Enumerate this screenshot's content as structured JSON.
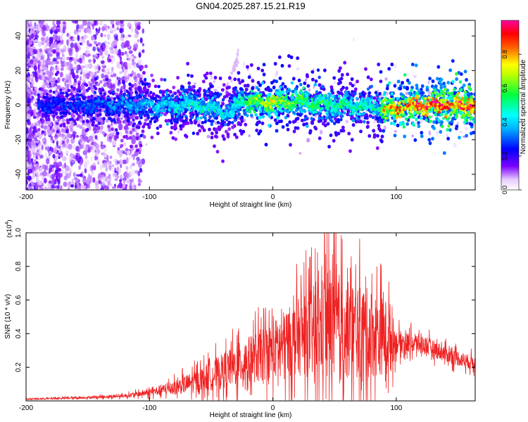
{
  "figure": {
    "title": "GN04.2025.287.15.21.R19"
  },
  "chart_data": [
    {
      "type": "heatmap",
      "name": "spectrogram",
      "xlabel": "Height of straight line (km)",
      "ylabel": "Frequency (Hz)",
      "xlim": [
        -200,
        164
      ],
      "ylim": [
        -49,
        49
      ],
      "x_ticks": [
        -200,
        -100,
        0,
        100
      ],
      "y_ticks": [
        -40,
        -20,
        0,
        20,
        40
      ],
      "colorbar": {
        "label": "Normalized spectral amplitude",
        "range": [
          0,
          1
        ],
        "ticks": [
          "0.0",
          "0.2",
          "0.4",
          "0.6",
          "0.8"
        ],
        "colormap": [
          "#ffffff",
          "#7a00ff",
          "#0000ff",
          "#00ffff",
          "#00ff00",
          "#ffff00",
          "#ff0000",
          "#ff00ff"
        ]
      },
      "ridge": {
        "description_x": [
          -200,
          -150,
          -100,
          -60,
          -35,
          -25,
          0,
          20,
          50,
          85,
          90,
          120,
          164
        ],
        "center_freq": [
          0,
          0,
          0,
          0,
          -5,
          3,
          1,
          2,
          0,
          -1,
          -3,
          0,
          0
        ],
        "peak_amplitude": [
          0.25,
          0.3,
          0.4,
          0.5,
          0.45,
          0.55,
          0.75,
          0.6,
          0.55,
          0.5,
          0.8,
          0.95,
          0.95
        ]
      }
    },
    {
      "type": "line",
      "name": "snr",
      "xlabel": "Height of straight line (km)",
      "ylabel": "SNR (10 * v/v)",
      "y_multiplier": "(x10",
      "y_multiplier_exp": "4",
      "y_multiplier_close": ")",
      "xlim": [
        -200,
        164
      ],
      "ylim": [
        0,
        1.0
      ],
      "x_ticks": [
        -200,
        -100,
        0,
        100
      ],
      "y_ticks": [
        "0.2",
        "0.4",
        "0.6",
        "0.8",
        "1.0"
      ],
      "color": "#ee2222",
      "envelope_x": [
        -200,
        -150,
        -120,
        -100,
        -80,
        -60,
        -40,
        -20,
        0,
        20,
        40,
        45,
        60,
        80,
        95,
        100,
        120,
        140,
        164
      ],
      "envelope_mean": [
        0.01,
        0.02,
        0.03,
        0.05,
        0.08,
        0.12,
        0.18,
        0.24,
        0.3,
        0.38,
        0.42,
        0.45,
        0.42,
        0.4,
        0.38,
        0.35,
        0.34,
        0.28,
        0.22
      ],
      "envelope_spread": [
        0.005,
        0.01,
        0.015,
        0.03,
        0.06,
        0.1,
        0.15,
        0.2,
        0.25,
        0.32,
        0.45,
        0.55,
        0.42,
        0.38,
        0.3,
        0.1,
        0.08,
        0.07,
        0.06
      ],
      "peak": {
        "x": 42,
        "y": 1.0
      }
    }
  ]
}
